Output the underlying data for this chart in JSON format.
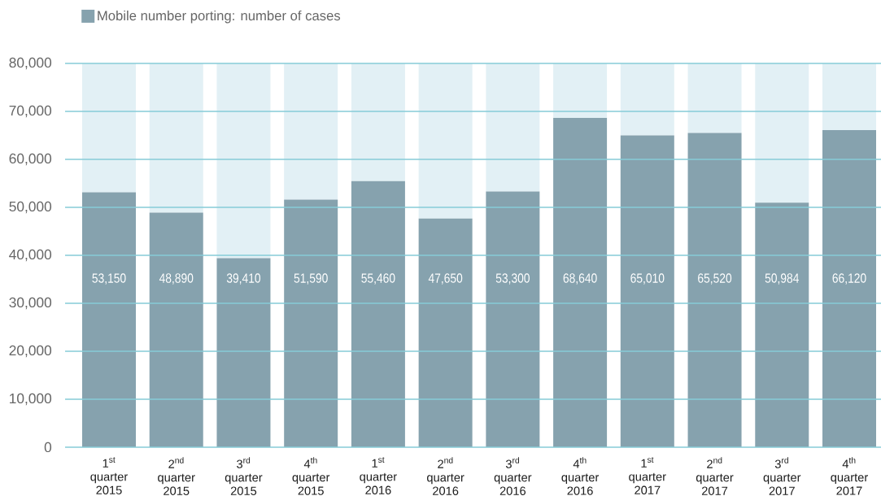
{
  "chart_data": {
    "type": "bar",
    "stacked": true,
    "categories": [
      "\\text{1}^{\\text{st}}\\ \\text{quarter}\\ \\text{2015}",
      "\\text{2}^{\\text{nd}}\\ \\text{quarter}\\ \\text{2015}",
      "\\text{3}^{\\text{rd}}\\ \\text{quarter}\\ \\text{2015}",
      "\\text{4}^{\\text{th}}\\ \\text{quarter}\\ \\text{2015}",
      "\\text{1}^{\\text{st}}\\ \\text{quarter}\\ \\text{2016}",
      "\\text{2}^{\\text{nd}}\\ \\text{quarter}\\ \\text{2016}",
      "\\text{3}^{\\text{rd}}\\ \\text{quarter}\\ \\text{2016}",
      "\\text{4}^{\\text{th}}\\ \\text{quarter}\\ \\text{2016}",
      "\\text{1}^{\\text{st}}\\ \\text{quarter}\\ \\text{2017}",
      "\\text{2}^{\\text{nd}}\\ \\text{quarter}\\ \\text{2017}",
      "\\text{3}^{\\text{rd}}\\ \\text{quarter}\\ \\text{2017}",
      "\\text{4}^{\\text{th}}\\ \\text{quarter}\\ \\text{2017}"
    ],
    "series": [
      {
        "name": "Mobile number porting: number of cases",
        "color": "#86a2ae",
        "values": [
          53150,
          48890,
          39410,
          51590,
          55460,
          47650,
          53300,
          68640,
          65010,
          65520,
          50984,
          66120
        ],
        "value_labels": [
          "53,150",
          "48,890",
          "39,410",
          "51,590",
          "55,460",
          "47,650",
          "53,300",
          "68,640",
          "65,010",
          "65,520",
          "50,984",
          "66,120"
        ]
      },
      {
        "color": "#e2f0f5",
        "values": [
          26850,
          31110,
          40590,
          28410,
          24540,
          32350,
          26700,
          11360,
          14990,
          14480,
          29016,
          13880
        ]
      }
    ],
    "ylim": [
      0,
      80000
    ],
    "yticks": [
      0,
      {
        "value": 10000,
        "label": "10,000"
      },
      {
        "value": 20000,
        "label": "20,000"
      },
      {
        "value": 30000,
        "label": "30,000"
      },
      {
        "value": 40000,
        "label": "40,000"
      },
      {
        "value": 50000,
        "label": "50,000"
      },
      {
        "value": 60000,
        "label": "60,000"
      },
      {
        "value": 70000,
        "label": "70,000"
      },
      {
        "value": 80000,
        "label": "80,000"
      }
    ],
    "grid": "y",
    "legend": "top left"
  }
}
